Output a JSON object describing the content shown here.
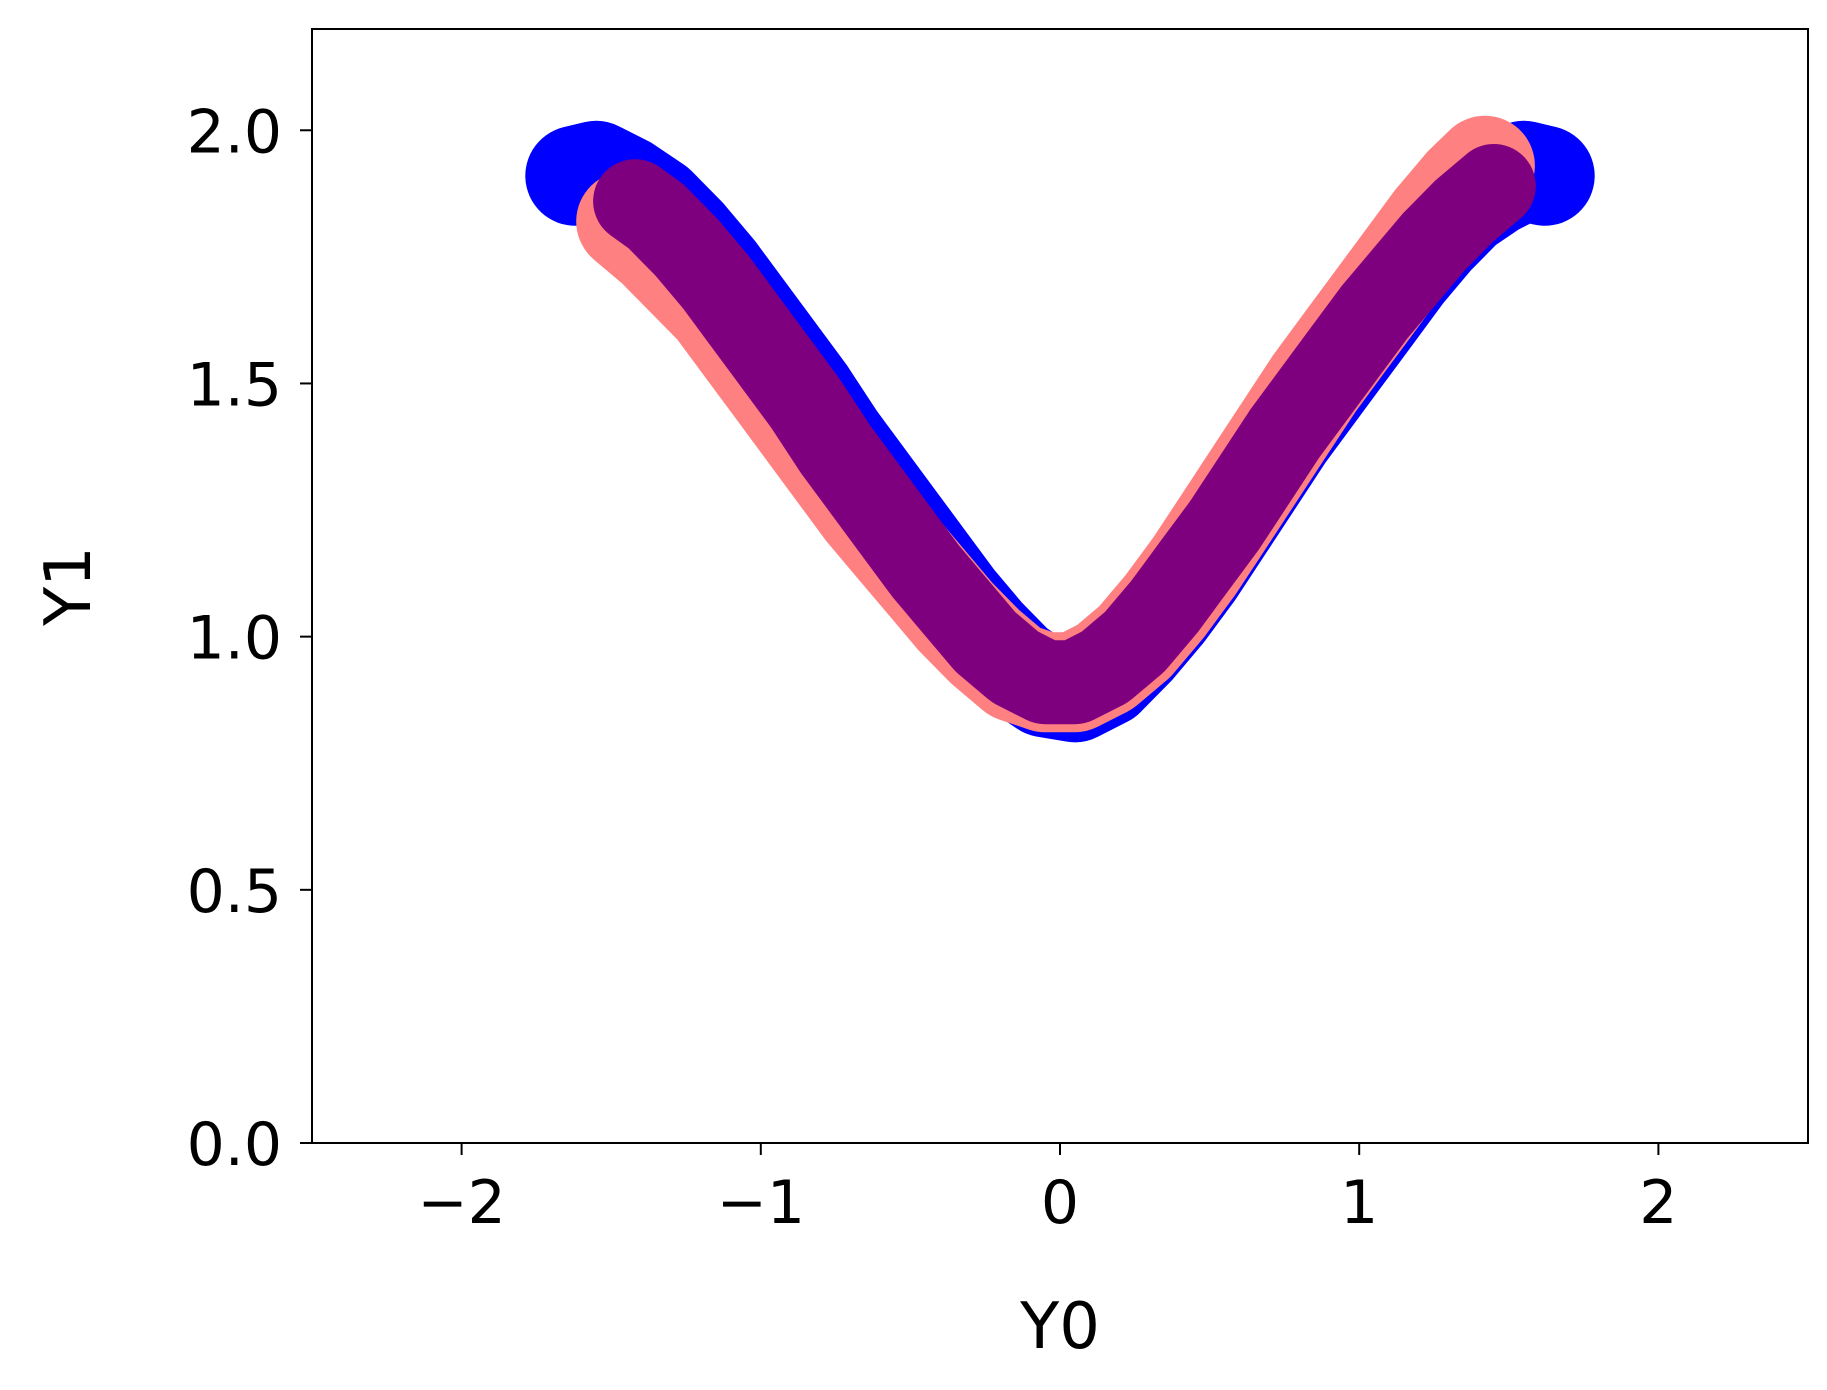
{
  "chart_data": {
    "type": "scatter",
    "title": "",
    "xlabel": "Y0",
    "ylabel": "Y1",
    "xlim": [
      -2.5,
      2.5
    ],
    "ylim": [
      0.0,
      2.2
    ],
    "xticks": [
      -2,
      -1,
      0,
      1,
      2
    ],
    "xtick_labels": [
      "−2",
      "−1",
      "0",
      "1",
      "2"
    ],
    "yticks": [
      0.0,
      0.5,
      1.0,
      1.5,
      2.0
    ],
    "ytick_labels": [
      "0.0",
      "0.5",
      "1.0",
      "1.5",
      "2.0"
    ],
    "grid": false,
    "legend": "none",
    "series": [
      {
        "color": "#0000ff",
        "x": [
          -1.62,
          -1.55,
          -1.45,
          -1.35,
          -1.25,
          -1.15,
          -1.05,
          -0.95,
          -0.85,
          -0.75,
          -0.65,
          -0.55,
          -0.45,
          -0.35,
          -0.25,
          -0.15,
          -0.05,
          0.05,
          0.15,
          0.25,
          0.35,
          0.45,
          0.55,
          0.65,
          0.75,
          0.85,
          0.95,
          1.05,
          1.15,
          1.25,
          1.35,
          1.45,
          1.55,
          1.62
        ],
        "y": [
          1.91,
          1.92,
          1.89,
          1.85,
          1.79,
          1.72,
          1.64,
          1.56,
          1.48,
          1.39,
          1.31,
          1.23,
          1.15,
          1.07,
          1.0,
          0.94,
          0.9,
          0.89,
          0.92,
          0.98,
          1.05,
          1.13,
          1.22,
          1.31,
          1.4,
          1.48,
          1.56,
          1.64,
          1.72,
          1.79,
          1.85,
          1.89,
          1.92,
          1.91
        ]
      },
      {
        "color": "#ff8080",
        "x": [
          -1.45,
          -1.35,
          -1.25,
          -1.15,
          -1.05,
          -0.95,
          -0.85,
          -0.75,
          -0.65,
          -0.55,
          -0.45,
          -0.35,
          -0.25,
          -0.15,
          -0.05,
          0.05,
          0.15,
          0.25,
          0.35,
          0.45,
          0.55,
          0.65,
          0.75,
          0.85,
          0.95,
          1.05,
          1.15,
          1.25,
          1.35,
          1.42
        ],
        "y": [
          1.82,
          1.77,
          1.71,
          1.65,
          1.57,
          1.49,
          1.41,
          1.33,
          1.25,
          1.18,
          1.11,
          1.04,
          0.98,
          0.93,
          0.91,
          0.91,
          0.94,
          0.99,
          1.06,
          1.14,
          1.23,
          1.32,
          1.41,
          1.5,
          1.58,
          1.66,
          1.74,
          1.82,
          1.89,
          1.93
        ]
      },
      {
        "color": "#7f007f",
        "x": [
          -1.42,
          -1.35,
          -1.25,
          -1.15,
          -1.05,
          -0.95,
          -0.85,
          -0.75,
          -0.65,
          -0.55,
          -0.45,
          -0.35,
          -0.25,
          -0.15,
          -0.05,
          0.05,
          0.15,
          0.25,
          0.35,
          0.45,
          0.55,
          0.65,
          0.75,
          0.85,
          0.95,
          1.05,
          1.15,
          1.25,
          1.35,
          1.45
        ],
        "y": [
          1.86,
          1.83,
          1.77,
          1.7,
          1.62,
          1.54,
          1.46,
          1.37,
          1.29,
          1.21,
          1.13,
          1.06,
          0.99,
          0.94,
          0.91,
          0.91,
          0.94,
          0.99,
          1.06,
          1.14,
          1.22,
          1.31,
          1.4,
          1.48,
          1.56,
          1.64,
          1.71,
          1.78,
          1.84,
          1.89
        ]
      }
    ]
  }
}
